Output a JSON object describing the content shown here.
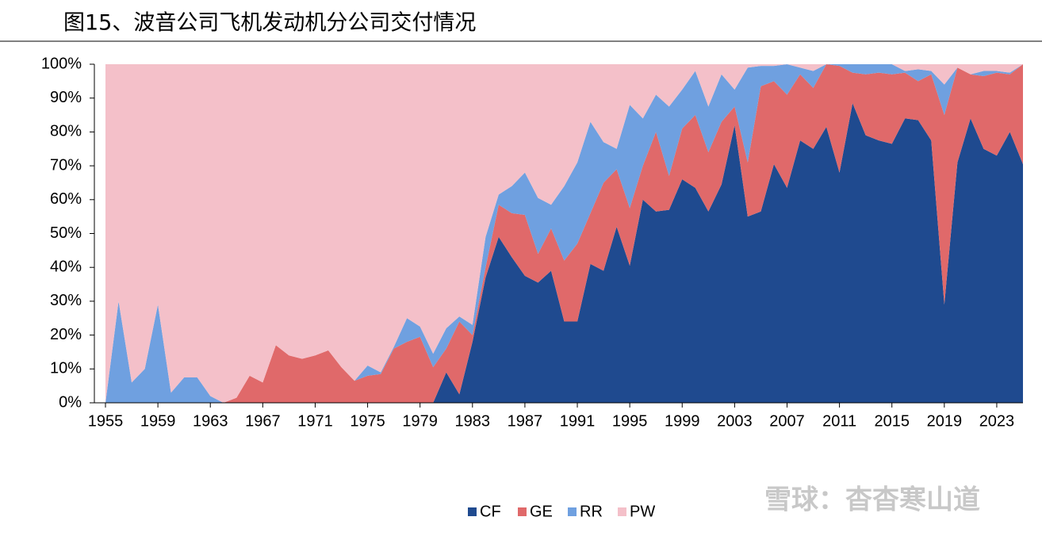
{
  "chart_data": {
    "type": "stacked_area",
    "title": "图15、波音公司飞机发动机分公司交付情况",
    "watermark": "雪球：杳杳寒山道",
    "x": [
      1955,
      1956,
      1957,
      1958,
      1959,
      1960,
      1961,
      1962,
      1963,
      1964,
      1965,
      1966,
      1967,
      1968,
      1969,
      1970,
      1971,
      1972,
      1973,
      1974,
      1975,
      1976,
      1977,
      1978,
      1979,
      1980,
      1981,
      1982,
      1983,
      1984,
      1985,
      1986,
      1987,
      1988,
      1989,
      1990,
      1991,
      1992,
      1993,
      1994,
      1995,
      1996,
      1997,
      1998,
      1999,
      2000,
      2001,
      2002,
      2003,
      2004,
      2005,
      2006,
      2007,
      2008,
      2009,
      2010,
      2011,
      2012,
      2013,
      2014,
      2015,
      2016,
      2017,
      2018,
      2019,
      2020,
      2021,
      2022,
      2023,
      2024,
      2025
    ],
    "series": [
      {
        "name": "CF",
        "color": "#1f4a8f",
        "values": [
          0,
          0,
          0,
          0,
          0,
          0,
          0,
          0,
          0,
          0,
          0,
          0,
          0,
          0,
          0,
          0,
          0,
          0,
          0,
          0,
          0,
          0,
          0,
          0,
          0,
          0,
          9,
          2.5,
          18,
          37,
          49,
          43,
          37.5,
          35.5,
          39,
          24,
          24,
          41,
          39,
          52,
          40.5,
          60,
          56.5,
          57,
          66,
          63.5,
          56.5,
          64.5,
          82,
          55,
          56.5,
          70.5,
          63.5,
          77.5,
          75,
          81.5,
          68,
          88.5,
          79,
          77.5,
          76.5,
          84,
          83.5,
          77.5,
          29,
          71,
          84,
          75,
          73,
          80,
          70.5
        ]
      },
      {
        "name": "GE",
        "color": "#e0696a",
        "values": [
          0,
          0,
          0,
          0,
          0,
          0,
          0,
          0,
          0,
          0,
          1.5,
          8,
          6,
          17,
          14,
          13,
          14,
          15.5,
          10.5,
          6.5,
          8,
          8.5,
          16,
          18,
          19.5,
          10.5,
          7,
          21.5,
          2,
          3,
          9.5,
          13,
          18,
          8.5,
          12.5,
          18,
          23,
          15,
          26,
          17,
          17,
          10,
          23.5,
          10,
          15,
          21.5,
          17.5,
          18.5,
          5.5,
          16,
          37,
          24.5,
          27.5,
          19.5,
          18,
          18.5,
          31.5,
          9,
          18,
          20,
          20.5,
          13.5,
          11.5,
          19.5,
          56,
          28,
          13,
          21.5,
          24.5,
          17,
          29.5
        ]
      },
      {
        "name": "RR",
        "color": "#6fa0e0",
        "values": [
          0,
          30,
          6,
          10,
          29,
          3,
          7.5,
          7.5,
          2,
          0,
          0,
          0,
          0,
          0,
          0,
          0,
          0,
          0,
          0,
          0,
          3,
          0.5,
          0.5,
          7,
          3,
          4,
          6,
          1.5,
          3,
          9,
          3,
          8,
          12.5,
          16.5,
          7,
          22,
          24,
          27,
          12,
          6,
          30.5,
          14,
          11,
          20.5,
          11.5,
          13,
          13.5,
          14,
          5,
          28,
          6,
          4.5,
          9,
          2,
          5,
          0,
          0.5,
          2.5,
          3,
          2.5,
          3,
          0.5,
          3.5,
          1,
          9,
          0,
          0,
          1.5,
          0.5,
          0.5,
          0
        ]
      },
      {
        "name": "PW",
        "color": "#f4c0c9",
        "values": [
          100,
          70,
          94,
          90,
          71,
          97,
          92.5,
          92.5,
          98,
          100,
          98.5,
          92,
          94,
          83,
          86,
          87,
          86,
          84.5,
          89.5,
          93.5,
          89,
          91,
          83.5,
          75,
          77.5,
          85.5,
          78,
          74.5,
          77,
          51,
          38.5,
          36,
          32,
          39.5,
          41.5,
          36,
          29,
          17,
          23,
          25,
          12,
          16,
          9,
          12.5,
          7.5,
          2,
          12.5,
          3,
          7.5,
          1,
          0.5,
          0.5,
          0,
          1,
          2,
          0,
          0,
          0,
          0,
          0,
          0,
          2,
          1.5,
          2,
          6,
          1,
          3,
          2,
          2,
          2.5,
          0
        ]
      }
    ],
    "xlim": [
      1955,
      2025
    ],
    "xticks": [
      1955,
      1959,
      1963,
      1967,
      1971,
      1975,
      1979,
      1983,
      1987,
      1991,
      1995,
      1999,
      2003,
      2007,
      2011,
      2015,
      2019,
      2023
    ],
    "ylim": [
      0,
      100
    ],
    "yticks": [
      {
        "value": 0,
        "label": "0%"
      },
      {
        "value": 10,
        "label": "10%"
      },
      {
        "value": 20,
        "label": "20%"
      },
      {
        "value": 30,
        "label": "30%"
      },
      {
        "value": 40,
        "label": "40%"
      },
      {
        "value": 50,
        "label": "50%"
      },
      {
        "value": 60,
        "label": "60%"
      },
      {
        "value": 70,
        "label": "70%"
      },
      {
        "value": 80,
        "label": "80%"
      },
      {
        "value": 90,
        "label": "90%"
      },
      {
        "value": 100,
        "label": "100%"
      }
    ],
    "legend": "bottom"
  }
}
